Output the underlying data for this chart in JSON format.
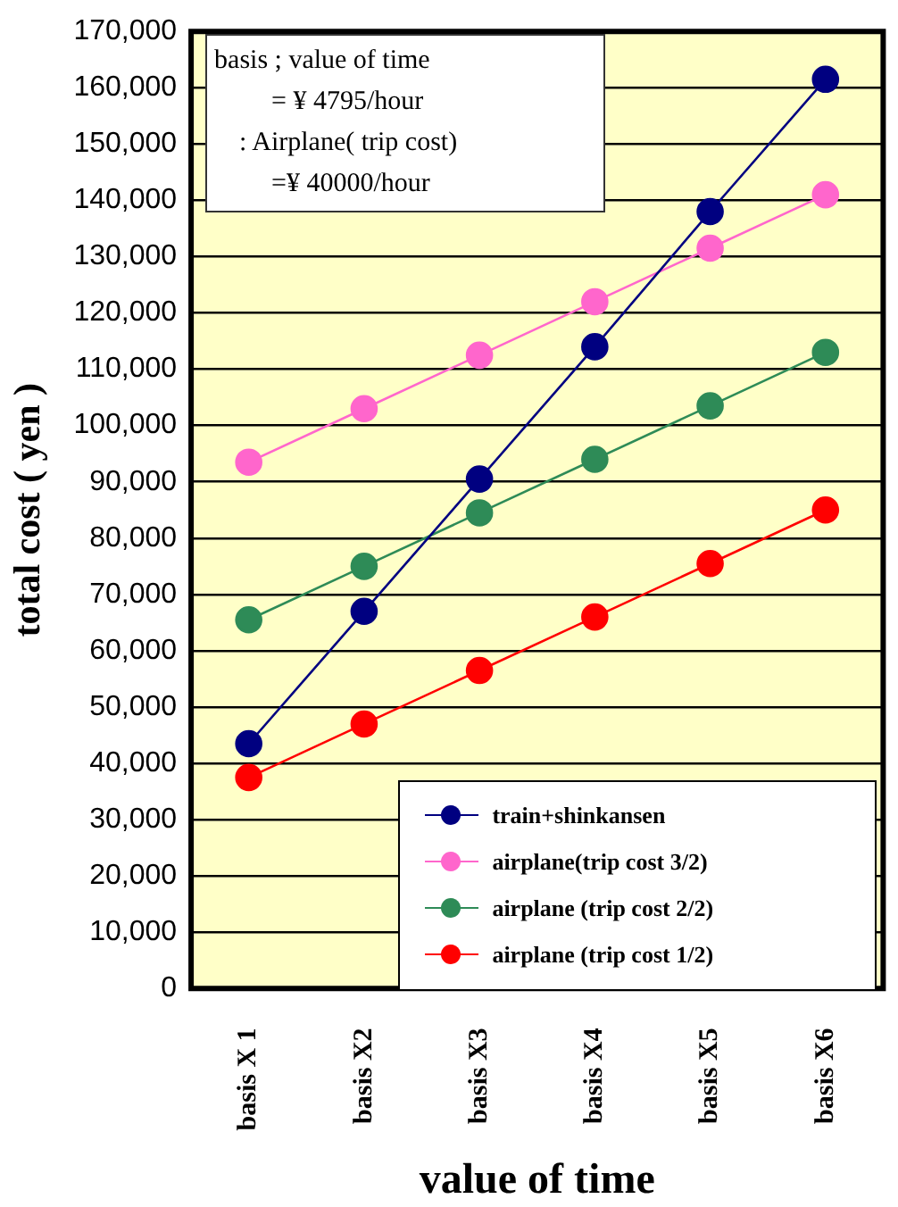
{
  "chart_data": {
    "type": "line",
    "xlabel": "value of time",
    "ylabel": "total cost ( yen )",
    "annotations": [
      "basis ; value of time",
      "= ¥ 4795/hour",
      ": Airplane( trip cost)",
      "=¥ 40000/hour"
    ],
    "categories": [
      "basis X 1",
      "basis X2",
      "basis X3",
      "basis X4",
      "basis X5",
      "basis X6"
    ],
    "series": [
      {
        "name": "train+shinkansen",
        "color": "#000080",
        "values": [
          43500,
          67000,
          90500,
          114000,
          138000,
          161500
        ]
      },
      {
        "name": "airplane(trip cost 3/2)",
        "color": "#ff66cc",
        "values": [
          93500,
          103000,
          112500,
          122000,
          131500,
          141000
        ]
      },
      {
        "name": "airplane (trip cost 2/2)",
        "color": "#2e8b57",
        "values": [
          65500,
          75000,
          84500,
          94000,
          103500,
          113000
        ]
      },
      {
        "name": "airplane (trip cost 1/2)",
        "color": "#ff0000",
        "values": [
          37500,
          47000,
          56500,
          66000,
          75500,
          85000
        ]
      }
    ],
    "ylim": [
      0,
      170000
    ],
    "yticks": [
      0,
      {
        "value": 10000,
        "label": "10,000"
      },
      {
        "value": 20000,
        "label": "20,000"
      },
      {
        "value": 30000,
        "label": "30,000"
      },
      {
        "value": 40000,
        "label": "40,000"
      },
      {
        "value": 50000,
        "label": "50,000"
      },
      {
        "value": 60000,
        "label": "60,000"
      },
      {
        "value": 70000,
        "label": "70,000"
      },
      {
        "value": 80000,
        "label": "80,000"
      },
      {
        "value": 90000,
        "label": "90,000"
      },
      {
        "value": 100000,
        "label": "100,000"
      },
      {
        "value": 110000,
        "label": "110,000"
      },
      {
        "value": 120000,
        "label": "120,000"
      },
      {
        "value": 130000,
        "label": "130,000"
      },
      {
        "value": 140000,
        "label": "140,000"
      },
      {
        "value": 150000,
        "label": "150,000"
      },
      {
        "value": 160000,
        "label": "160,000"
      },
      {
        "value": 170000,
        "label": "170,000"
      }
    ],
    "grid": "y",
    "legend": "bottom right",
    "marker": "circle",
    "line_style": "solid"
  }
}
